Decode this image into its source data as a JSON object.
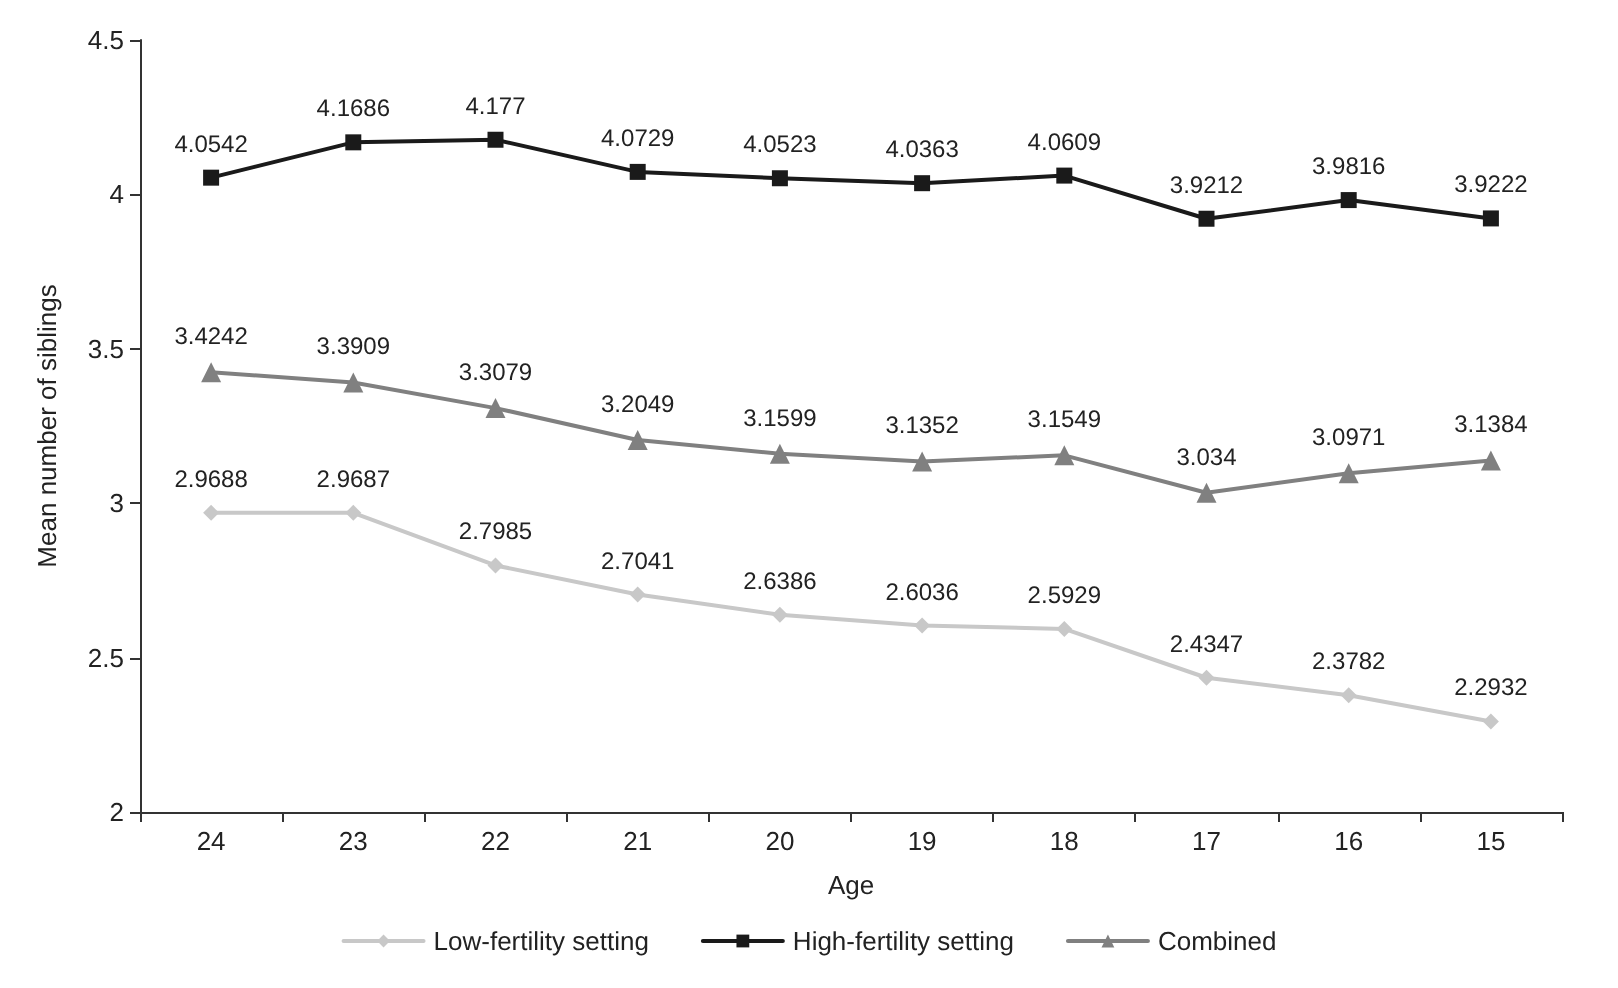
{
  "chart_data": {
    "type": "line",
    "xlabel": "Age",
    "ylabel": "Mean number of siblings",
    "categories": [
      "24",
      "23",
      "22",
      "21",
      "20",
      "19",
      "18",
      "17",
      "16",
      "15"
    ],
    "series": [
      {
        "name": "Low-fertility setting",
        "color": "#c8c8c8",
        "marker": "diamond",
        "values": [
          2.9688,
          2.9687,
          2.7985,
          2.7041,
          2.6386,
          2.6036,
          2.5929,
          2.4347,
          2.3782,
          2.2932
        ]
      },
      {
        "name": "High-fertility setting",
        "color": "#1a1a1a",
        "marker": "square",
        "values": [
          4.0542,
          4.1686,
          4.177,
          4.0729,
          4.0523,
          4.0363,
          4.0609,
          3.9212,
          3.9816,
          3.9222
        ]
      },
      {
        "name": "Combined",
        "color": "#808080",
        "marker": "triangle",
        "values": [
          3.4242,
          3.3909,
          3.3079,
          3.2049,
          3.1599,
          3.1352,
          3.1549,
          3.034,
          3.0971,
          3.1384
        ]
      }
    ],
    "ylim": [
      2,
      4.5
    ],
    "yticks": [
      2,
      2.5,
      3,
      3.5,
      4,
      4.5
    ],
    "grid": false,
    "legend": "bottom",
    "data_labels": true,
    "line_style": "solid"
  }
}
